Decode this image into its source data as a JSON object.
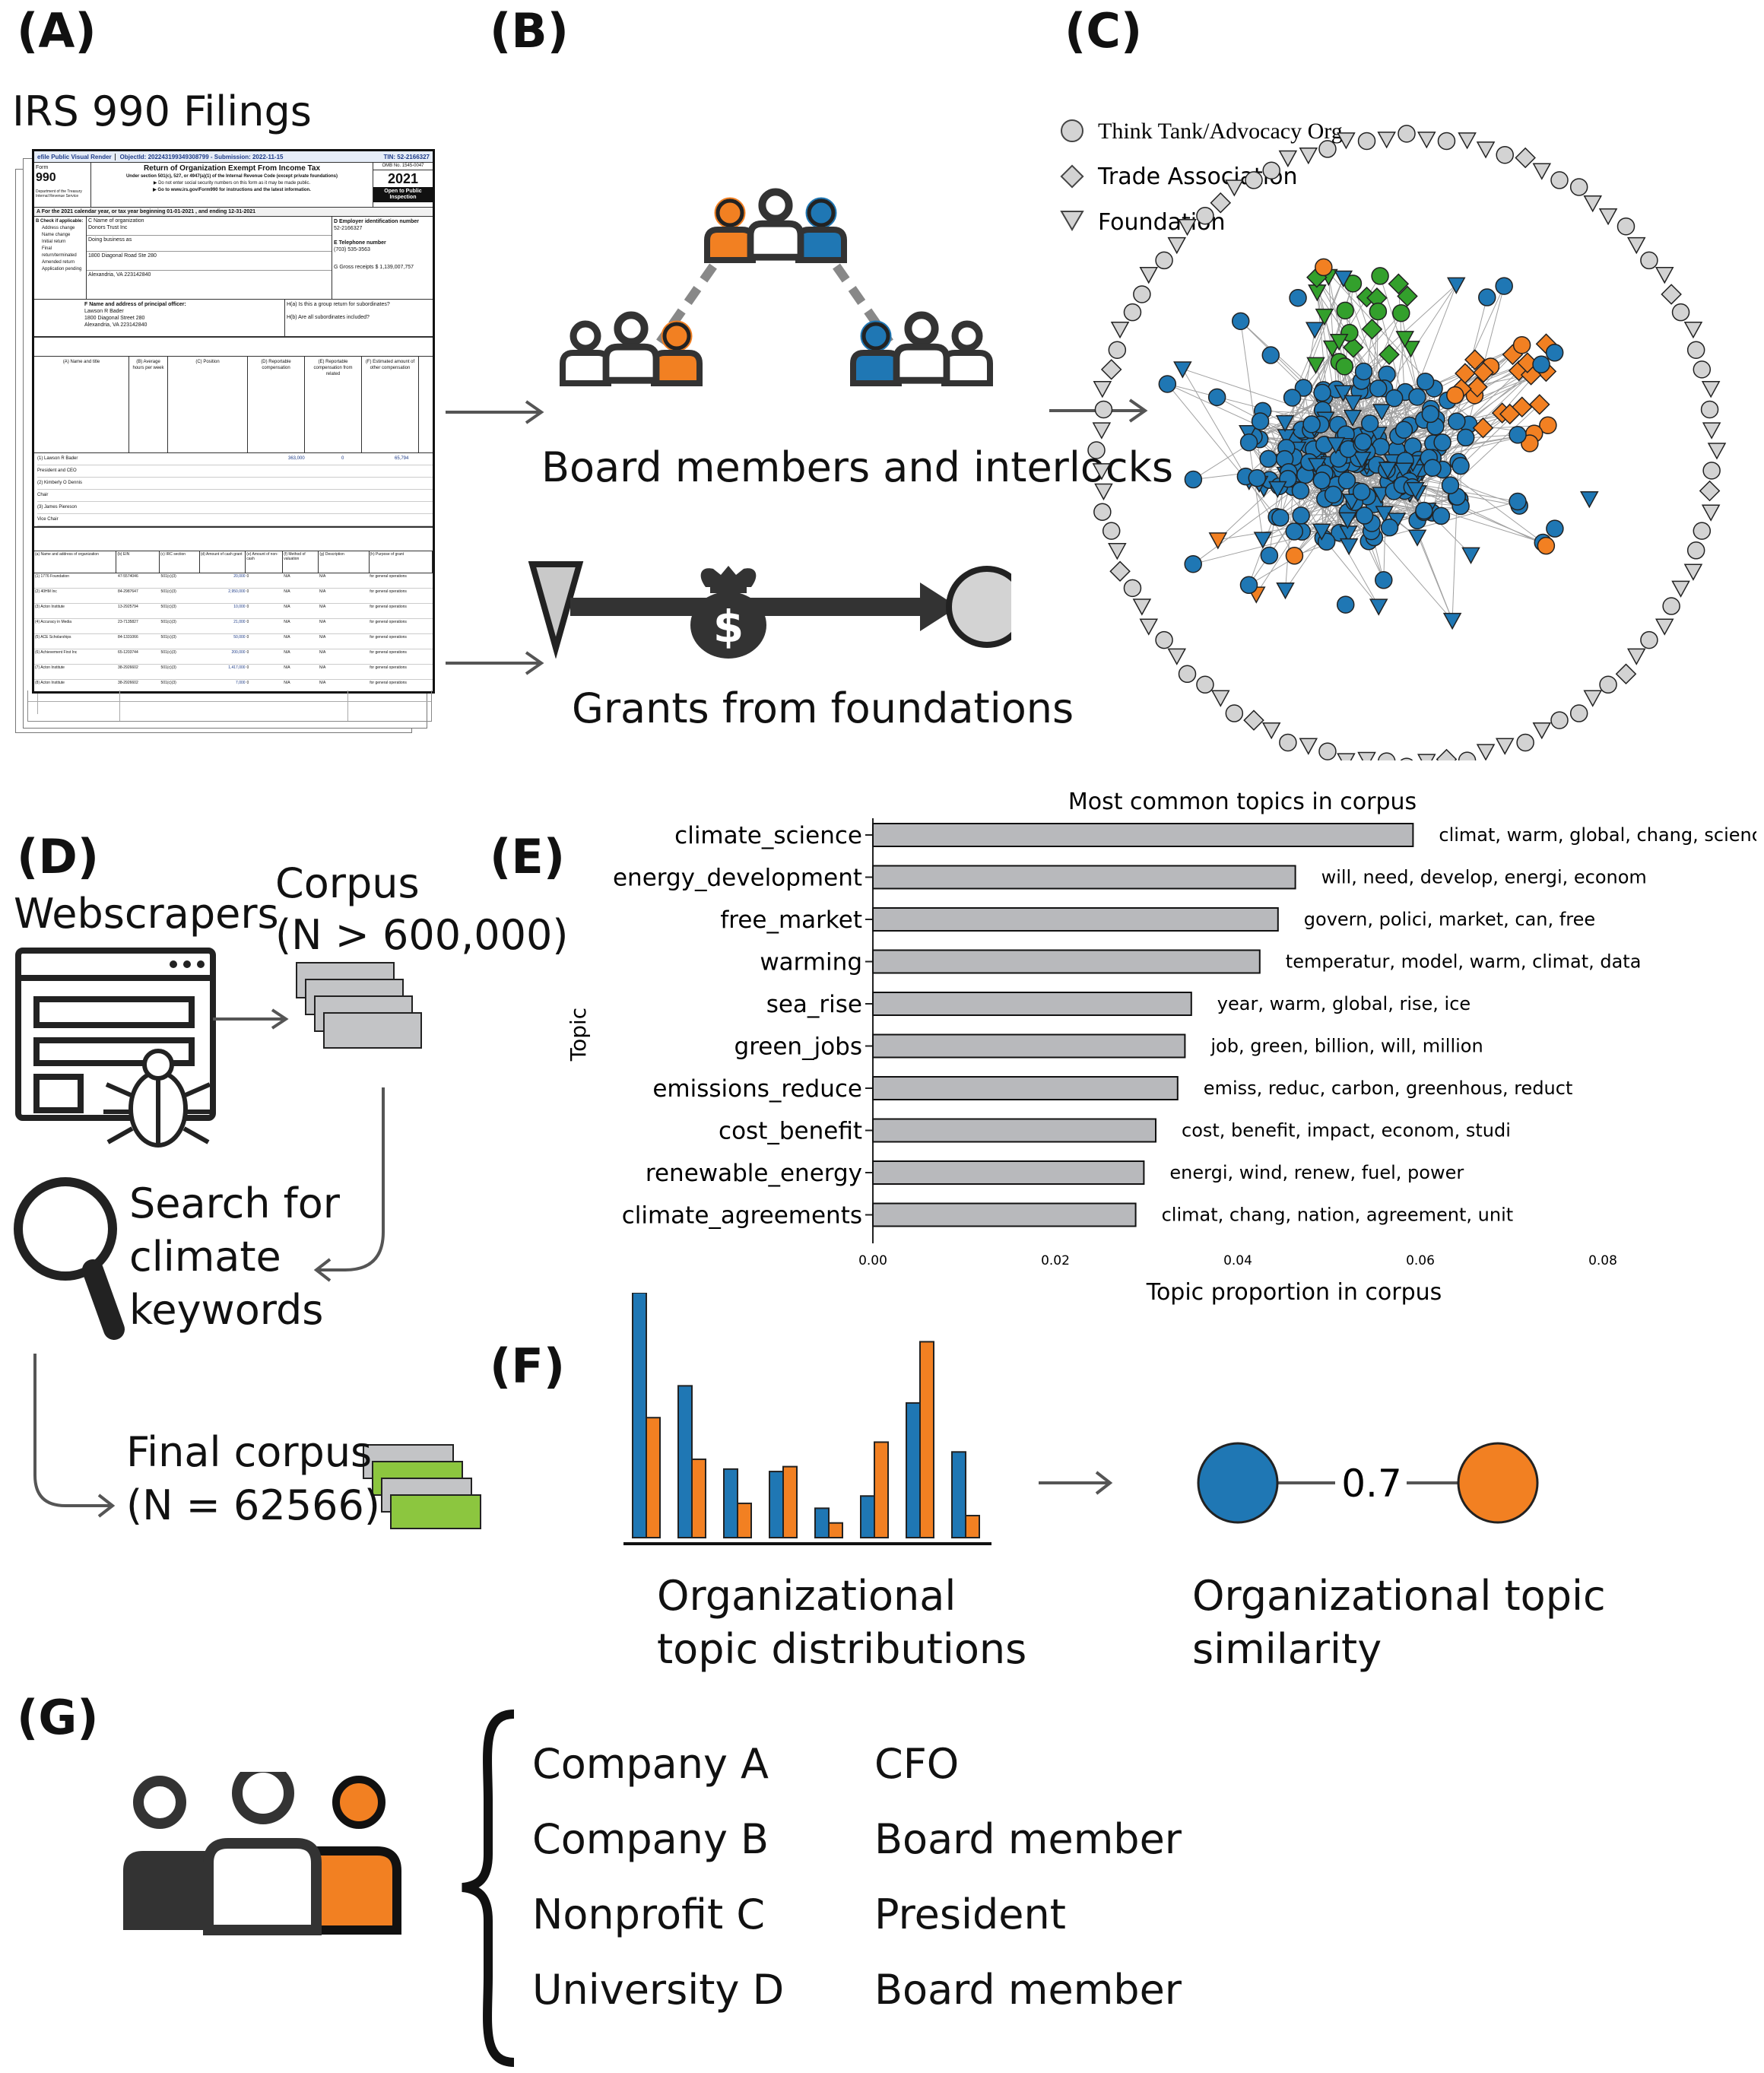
{
  "labels": {
    "a": "(A)",
    "b": "(B)",
    "c": "(C)",
    "d": "(D)",
    "e": "(E)",
    "f": "(F)",
    "g": "(G)"
  },
  "panel_a": {
    "title": "IRS 990 Filings",
    "form": {
      "banner": "efile Public Visual Render",
      "object_id": "ObjectId: 202243199349308799 - Submission: 2022-11-15",
      "tin": "TIN: 52-2166327",
      "form_label": "Form",
      "form_number": "990",
      "heading": "Return of Organization Exempt From Income Tax",
      "subheading": "Under section 501(c), 527, or 4947(a)(1) of the Internal Revenue Code (except private foundations)",
      "note1": "▶ Do not enter social security numbers on this form as it may be made public.",
      "note2": "▶ Go to www.irs.gov/Form990 for instructions and the latest information.",
      "omb": "OMB No. 1545-0047",
      "year": "2021",
      "open_public": "Open to Public Inspection",
      "dept": "Department of the Treasury Internal Revenue Service",
      "line_a": "A  For the 2021 calendar year, or tax year beginning 01-01-2021 , and ending 12-31-2021",
      "check_items": [
        "B Check if applicable:",
        "Address change",
        "Name change",
        "Initial return",
        "Final return/terminated",
        "Amended return",
        "Application pending"
      ],
      "org_name_label": "C Name of organization",
      "org_name": "Donors Trust Inc",
      "dba": "Doing business as",
      "street": "1800 Diagonal Road Ste 280",
      "city": "Alexandria, VA  223142840",
      "ein_label": "D Employer identification number",
      "ein": "52-2166327",
      "phone_label": "E Telephone number",
      "phone": "(703) 535-3563",
      "gross": "G Gross receipts $ 1,139,007,757",
      "officer_label": "F  Name and address of principal officer:",
      "officer": "Lawson R Bader",
      "officer_street": "1800 Diagonal Street 280",
      "officer_city": "Alexandria, VA  223142840",
      "ha": "H(a)  Is this a group return for subordinates?",
      "hb": "H(b)  Are all subordinates included?",
      "cols": [
        "(A) Name and title",
        "(B) Average hours per week",
        "(C) Position",
        "(D) Reportable compensation",
        "(E) Reportable compensation from related",
        "(F) Estimated amount of other compensation"
      ],
      "people": [
        "(1) Lawson R Bader",
        "President and CEO",
        "(2) Kimberly O Dennis",
        "Chair",
        "(3) James Piereson",
        "Vice Chair"
      ],
      "amounts": [
        "363,000",
        "0",
        "65,794"
      ],
      "grant_cols": [
        "(a) Name and address of organization",
        "(b) EIN",
        "(c) IRC section",
        "(d) Amount of cash grant",
        "(e) Amount of non-cash",
        "(f) Method of valuation",
        "(g) Description",
        "(h) Purpose of grant"
      ],
      "grant_rows": [
        [
          "(1) 1776 Foundation",
          "47-5574046",
          "501(c)(3)",
          "20,000"
        ],
        [
          "(2) 40HM Inc",
          "84-2987647",
          "501(c)(3)",
          "2,950,000"
        ],
        [
          "(3) Acton Institute",
          "13-2925794",
          "501(c)(3)",
          "10,000"
        ],
        [
          "(4) Accuracy in Media",
          "23-7135827",
          "501(c)(3)",
          "21,000"
        ],
        [
          "(5) ACE Scholarships",
          "84-1331066",
          "501(c)(3)",
          "50,000"
        ],
        [
          "(6) Achievement First Inc",
          "65-1203744",
          "501(c)(3)",
          "200,000"
        ],
        [
          "(7) Acton Institute",
          "38-2926602",
          "501(c)(3)",
          "1,417,000"
        ],
        [
          "(8) Acton Institute",
          "38-2926602",
          "501(c)(3)",
          "7,000"
        ]
      ],
      "grant_fill": [
        "0",
        "N/A",
        "N/A",
        "for general operations"
      ]
    }
  },
  "panel_b": {
    "interlocks": "Board members and interlocks",
    "grants": "Grants from foundations",
    "money_symbol": "$"
  },
  "panel_c": {
    "legend": [
      "Think Tank/Advocacy Org",
      "Trade Association",
      "Foundation"
    ]
  },
  "panel_d": {
    "webscrapers": "Webscrapers",
    "corpus": "Corpus",
    "corpus_n": "(N > 600,000)",
    "search": [
      "Search for",
      "climate",
      "keywords"
    ],
    "final": "Final corpus",
    "final_n": "(N = 62566)"
  },
  "chart_data": {
    "type": "bar",
    "orientation": "horizontal",
    "title": "Most common topics in corpus",
    "xlabel": "Topic proportion in corpus",
    "ylabel": "Topic",
    "xlim": [
      0.0,
      0.08
    ],
    "xticks": [
      "0.00",
      "0.02",
      "0.04",
      "0.06",
      "0.08"
    ],
    "categories": [
      "climate_science",
      "energy_development",
      "free_market",
      "warming",
      "sea_rise",
      "green_jobs",
      "emissions_reduce",
      "cost_benefit",
      "renewable_energy",
      "climate_agreements"
    ],
    "values": [
      0.0592,
      0.0463,
      0.0444,
      0.0424,
      0.0349,
      0.0342,
      0.0334,
      0.031,
      0.0297,
      0.0288
    ],
    "annotations": [
      "climat, warm, global, chang, scienc",
      "will, need, develop, energi, econom",
      "govern, polici, market, can, free",
      "temperatur, model, warm, climat, data",
      "year, warm, global, rise, ice",
      "job, green, billion, will, million",
      "emiss, reduc, carbon, greenhous, reduct",
      "cost, benefit, impact, econom, studi",
      "energi, wind, renew, fuel, power",
      "climat, chang, nation, agreement, unit"
    ],
    "bar_color": "#b8b9bc"
  },
  "panel_f": {
    "dist_label": [
      "Organizational",
      "topic distributions"
    ],
    "sim_label": [
      "Organizational topic",
      "similarity"
    ],
    "similarity": "0.7",
    "blue_values": [
      1.0,
      0.62,
      0.28,
      0.27,
      0.12,
      0.17,
      0.55,
      0.35
    ],
    "orange_values": [
      0.49,
      0.32,
      0.14,
      0.29,
      0.06,
      0.39,
      0.8,
      0.09
    ]
  },
  "panel_g": {
    "rows": [
      {
        "org": "Company A",
        "role": "CFO"
      },
      {
        "org": "Company B",
        "role": "Board member"
      },
      {
        "org": "Nonprofit C",
        "role": "President"
      },
      {
        "org": "University D",
        "role": "Board member"
      }
    ]
  },
  "colors": {
    "blue": "#1f77b4",
    "orange": "#f28022",
    "green": "#33a02c",
    "gray": "#d3d3d3",
    "dark": "#333333",
    "lime": "#8cc63f"
  }
}
